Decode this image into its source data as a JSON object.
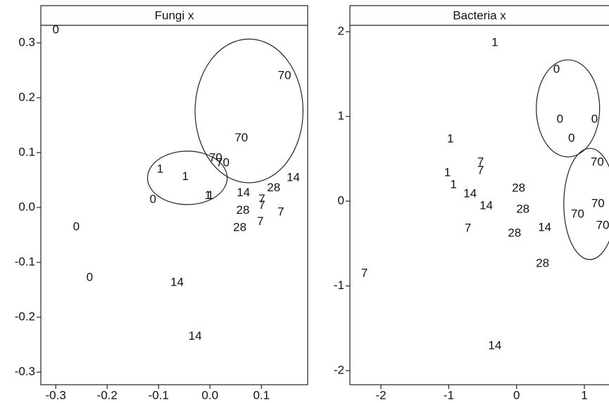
{
  "chart_data": [
    {
      "type": "scatter",
      "title": "Fungi x",
      "x": [
        -0.3,
        0.145,
        0.061,
        0.011,
        0.025,
        -0.097,
        -0.048,
        0.162,
        0.124,
        0.065,
        0.101,
        -0.004,
        0.001,
        -0.111,
        0.101,
        0.064,
        0.138,
        0.098,
        0.058,
        -0.26,
        -0.234,
        -0.064,
        -0.029
      ],
      "values": [
        0.323,
        0.24,
        0.126,
        0.09,
        0.081,
        0.069,
        0.056,
        0.054,
        0.035,
        0.026,
        0.015,
        0.021,
        0.021,
        0.014,
        0.003,
        -0.006,
        -0.009,
        -0.026,
        -0.037,
        -0.036,
        -0.128,
        -0.137,
        -0.235
      ],
      "labels": [
        "0",
        "70",
        "70",
        "70",
        "70",
        "1",
        "1",
        "14",
        "28",
        "14",
        "7",
        "1",
        "1",
        "0",
        "7",
        "28",
        "7",
        "7",
        "28",
        "0",
        "0",
        "14",
        "14"
      ],
      "ellipses": [
        {
          "cx": 0.076,
          "cy": 0.176,
          "rx": 0.105,
          "ry": 0.131
        },
        {
          "cx": -0.044,
          "cy": 0.054,
          "rx": 0.0775,
          "ry": 0.0487
        }
      ],
      "xlim": [
        -0.329,
        0.19
      ],
      "ylim": [
        -0.323,
        0.332
      ],
      "xticks": [
        -0.3,
        -0.2,
        -0.1,
        {
          "value": 0,
          "label": "0.0"
        },
        0.1
      ],
      "yticks": [
        0.3,
        0.2,
        0.1,
        {
          "value": 0,
          "label": "0.0"
        },
        -0.1,
        -0.2,
        -0.3
      ]
    },
    {
      "type": "scatter",
      "title": "Bacteria x",
      "x": [
        -0.32,
        0.59,
        0.64,
        1.15,
        0.81,
        -0.976,
        1.19,
        -0.53,
        -0.53,
        -1.02,
        -0.93,
        0.03,
        -0.685,
        -0.447,
        1.2,
        0.093,
        0.9,
        1.27,
        0.415,
        -0.717,
        -0.03,
        0.384,
        -2.243,
        -0.32
      ],
      "values": [
        1.867,
        1.552,
        0.963,
        0.963,
        0.739,
        0.73,
        0.456,
        0.456,
        0.357,
        0.332,
        0.191,
        0.149,
        0.083,
        -0.058,
        -0.033,
        -0.1,
        -0.158,
        -0.29,
        -0.315,
        -0.324,
        -0.382,
        -0.739,
        -0.855,
        -1.71
      ],
      "labels": [
        "1",
        "0",
        "0",
        "0",
        "0",
        "1",
        "70",
        "7",
        "7",
        "1",
        "1",
        "28",
        "14",
        "14",
        "70",
        "28",
        "70",
        "70",
        "14",
        "7",
        "28",
        "28",
        "7",
        "14"
      ],
      "ellipses": [
        {
          "cx": 0.758,
          "cy": 1.095,
          "rx": 0.467,
          "ry": 0.573
        },
        {
          "cx": 1.08,
          "cy": -0.033,
          "rx": 0.384,
          "ry": 0.656
        }
      ],
      "xlim": [
        -2.457,
        1.363
      ],
      "ylim": [
        -2.166,
        2.075
      ],
      "xticks": [
        -2,
        -1,
        0,
        1
      ],
      "yticks": [
        2,
        1,
        0,
        -1,
        -2
      ]
    }
  ]
}
